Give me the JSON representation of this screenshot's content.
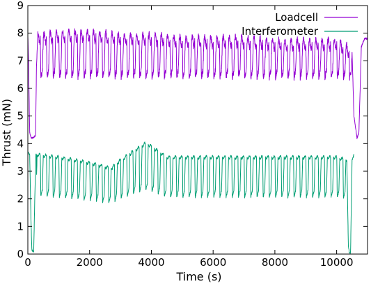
{
  "chart_data": {
    "type": "line",
    "xlabel": "Time (s)",
    "ylabel": "Thrust (mN)",
    "xlim": [
      0,
      11000
    ],
    "ylim": [
      0,
      9
    ],
    "xticks": [
      0,
      2000,
      4000,
      6000,
      8000,
      10000
    ],
    "yticks": [
      0,
      1,
      2,
      3,
      4,
      5,
      6,
      7,
      8,
      9
    ],
    "grid": false,
    "legend_position": "top-right",
    "series": [
      {
        "name": "Loadcell",
        "color": "#9400d3",
        "pulse_period_s": 200,
        "pulse_high": 7.8,
        "pulse_low": 6.4,
        "x": [
          0,
          20,
          60,
          80,
          120,
          160,
          250,
          280,
          320,
          400,
          1000,
          2000,
          3000,
          4000,
          5000,
          6000,
          7000,
          8000,
          9000,
          10000,
          10500,
          10560,
          10660,
          10720,
          10800,
          10900,
          11000
        ],
        "values": [
          7.9,
          7.1,
          4.4,
          4.3,
          4.2,
          4.2,
          4.3,
          6.8,
          7.9,
          7.8,
          7.9,
          7.9,
          7.8,
          7.8,
          7.7,
          7.7,
          7.7,
          7.6,
          7.6,
          7.6,
          7.3,
          5.0,
          4.2,
          4.4,
          7.5,
          7.8,
          7.8
        ]
      },
      {
        "name": "Interferometer",
        "color": "#009e73",
        "pulse_period_s": 200,
        "pulse_low": 2.0,
        "x": [
          0,
          60,
          100,
          130,
          160,
          190,
          220,
          260,
          1000,
          2000,
          2700,
          3000,
          3800,
          4000,
          4500,
          5000,
          6000,
          7000,
          8000,
          9000,
          10000,
          10330,
          10380,
          10410,
          10450,
          10500,
          10560
        ],
        "values": [
          3.7,
          3.6,
          1.3,
          0.15,
          0.1,
          0.1,
          1.8,
          3.6,
          3.5,
          3.3,
          3.1,
          3.4,
          4.0,
          3.9,
          3.5,
          3.5,
          3.5,
          3.5,
          3.5,
          3.5,
          3.5,
          3.4,
          0.3,
          0.05,
          0.05,
          3.4,
          3.6
        ]
      }
    ]
  }
}
